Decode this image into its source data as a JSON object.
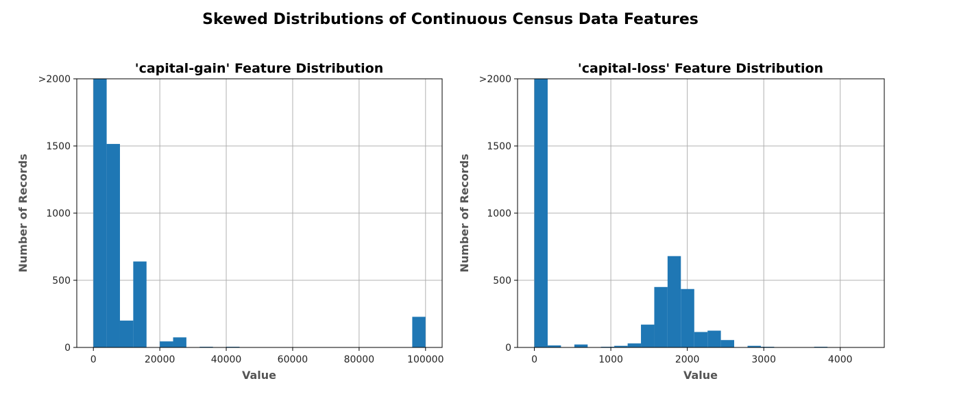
{
  "figure": {
    "suptitle": "Skewed Distributions of Continuous Census Data Features",
    "bar_color": "#1f77b4",
    "grid_color": "#b0b0b0"
  },
  "chart_data": [
    {
      "type": "bar",
      "title": "'capital-gain' Feature Distribution",
      "xlabel": "Value",
      "ylabel": "Number of Records",
      "xlim": [
        -5000,
        105000
      ],
      "ylim": [
        0,
        2000
      ],
      "xticks": [
        0,
        20000,
        40000,
        60000,
        80000,
        100000
      ],
      "xtick_labels": [
        "0",
        "20000",
        "40000",
        "60000",
        "80000",
        "100000"
      ],
      "yticks": [
        0,
        500,
        1000,
        1500,
        2000
      ],
      "ytick_labels": [
        "0",
        "500",
        "1000",
        "1500",
        ">2000"
      ],
      "grid": true,
      "bin_edges": [
        0,
        4000,
        8000,
        12000,
        16000,
        20000,
        24000,
        28000,
        32000,
        36000,
        40000,
        44000,
        48000,
        52000,
        56000,
        60000,
        64000,
        68000,
        72000,
        76000,
        80000,
        84000,
        88000,
        92000,
        96000,
        100000
      ],
      "values": [
        2000,
        1515,
        200,
        640,
        0,
        45,
        75,
        0,
        5,
        0,
        5,
        0,
        0,
        0,
        0,
        0,
        0,
        0,
        0,
        0,
        0,
        0,
        0,
        0,
        228
      ]
    },
    {
      "type": "bar",
      "title": "'capital-loss' Feature Distribution",
      "xlabel": "Value",
      "ylabel": "Number of Records",
      "xlim": [
        -220,
        4576
      ],
      "ylim": [
        0,
        2000
      ],
      "xticks": [
        0,
        1000,
        2000,
        3000,
        4000
      ],
      "xtick_labels": [
        "0",
        "1000",
        "2000",
        "3000",
        "4000"
      ],
      "yticks": [
        0,
        500,
        1000,
        1500,
        2000
      ],
      "ytick_labels": [
        "0",
        "500",
        "1000",
        "1500",
        ">2000"
      ],
      "grid": true,
      "bin_edges": [
        0,
        174,
        348,
        523,
        697,
        871,
        1045,
        1220,
        1394,
        1568,
        1742,
        1916,
        2091,
        2265,
        2439,
        2613,
        2788,
        2962,
        3136,
        3310,
        3484,
        3659,
        3833,
        4007,
        4181,
        4356
      ],
      "values": [
        2000,
        15,
        0,
        22,
        0,
        5,
        12,
        30,
        170,
        450,
        680,
        435,
        115,
        125,
        55,
        0,
        12,
        5,
        0,
        0,
        0,
        5,
        0,
        0,
        0
      ]
    }
  ]
}
